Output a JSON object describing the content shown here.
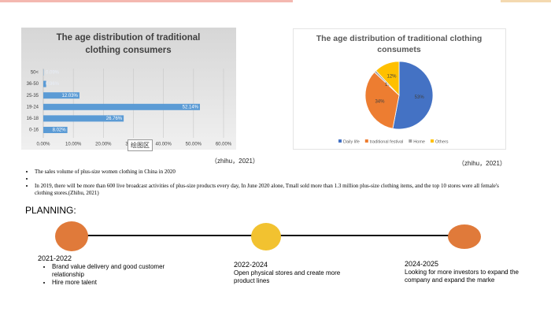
{
  "chart_data": [
    {
      "type": "bar",
      "orientation": "horizontal",
      "title": "The age distribution of traditional clothing consumers",
      "categories": [
        "50<",
        "36-50",
        "25-35",
        "19-24",
        "16-18",
        "0-16"
      ],
      "values": [
        0.09,
        0.96,
        12.03,
        52.14,
        26.76,
        8.02
      ],
      "value_labels": [
        "0.09%",
        "0.96%",
        "12.03%",
        "52.14%",
        "26.76%",
        "8.02%"
      ],
      "color": "#5b9bd5",
      "grid": true,
      "xlim": [
        0,
        60
      ],
      "xticks": [
        {
          "value": 0,
          "label": "0.00%"
        },
        {
          "value": 10,
          "label": "10.00%"
        },
        {
          "value": 20,
          "label": "20.00%"
        },
        {
          "value": 30,
          "label": "30.00%"
        },
        {
          "value": 40,
          "label": "40.00%"
        },
        {
          "value": 50,
          "label": "50.00%"
        },
        {
          "value": 60,
          "label": "60.00%"
        }
      ],
      "source": "（zhihu，2021）",
      "tooltip": "绘图区"
    },
    {
      "type": "pie",
      "title": "The age distribution of traditional clothing consumets",
      "categories": [
        "Daily life",
        "traditional festival",
        "Home",
        "Others"
      ],
      "values": [
        53,
        34,
        1,
        12
      ],
      "value_labels": [
        "53%",
        "34%",
        "1%",
        "12%"
      ],
      "colors": [
        "#4472c4",
        "#ed7d31",
        "#a5a5a5",
        "#ffc000"
      ],
      "legend": "bottom",
      "source": "（zhihu，2021）"
    }
  ],
  "bullets": [
    "The sales volume of plus-size women clothing in China in 2020",
    "In 2019, there will be more than 600 live broadcast activities of plus-size products every day, In June 2020 alone, Tmall sold more than 1.3 million plus-size clothing items, and the top 10 stores were all female's clothing stores.(Zhihu, 2021)"
  ],
  "planning": {
    "title": "PLANNING:",
    "stages": [
      {
        "period": "2021-2022",
        "items": [
          "Brand value delivery and good customer relationship",
          "Hire more talent"
        ]
      },
      {
        "period": "2022-2024",
        "text": "Open physical stores and create more product lines"
      },
      {
        "period": "2024-2025",
        "text": "Looking for more investors to expand the company and expand the marke"
      }
    ]
  }
}
